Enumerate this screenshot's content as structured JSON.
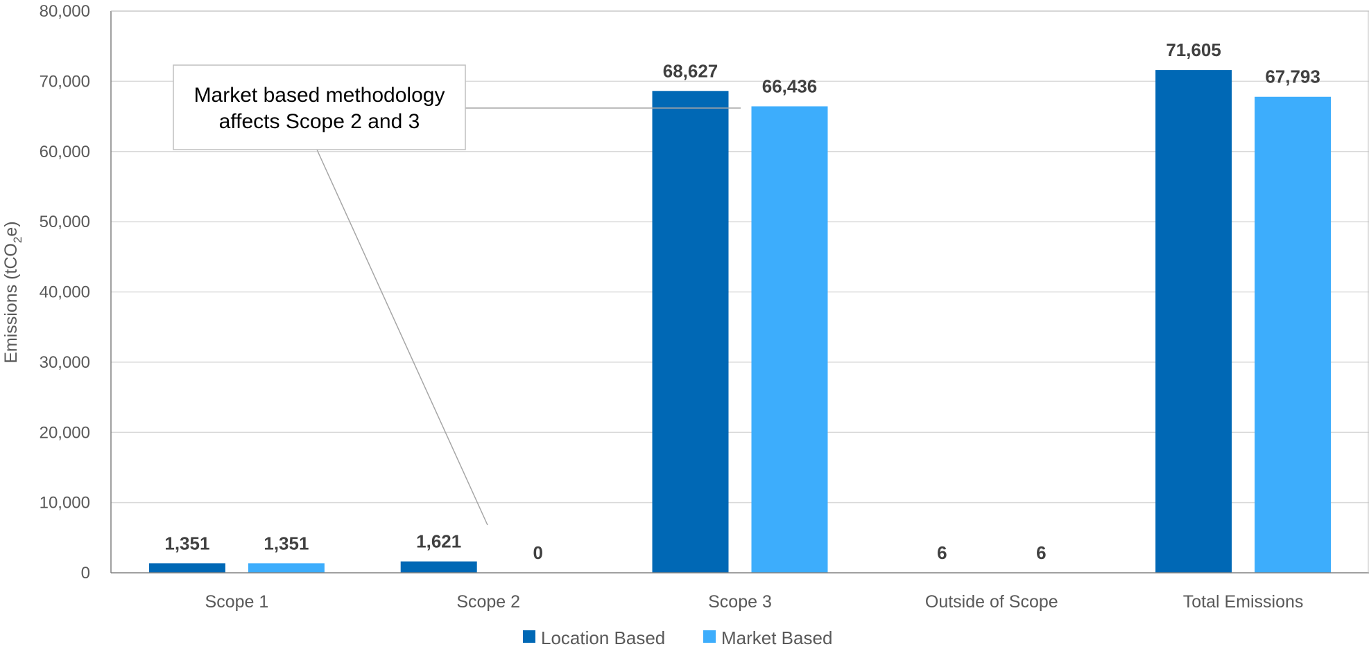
{
  "chart_data": {
    "type": "bar",
    "categories": [
      "Scope 1",
      "Scope 2",
      "Scope 3",
      "Outside of Scope",
      "Total Emissions"
    ],
    "series": [
      {
        "name": "Location Based",
        "color": "#0068B5",
        "values": [
          1351,
          1621,
          68627,
          6,
          71605
        ],
        "labels": [
          "1,351",
          "1,621",
          "68,627",
          "6",
          "71,605"
        ]
      },
      {
        "name": "Market Based",
        "color": "#3DADFC",
        "values": [
          1351,
          0,
          66436,
          6,
          67793
        ],
        "labels": [
          "1,351",
          "0",
          "66,436",
          "6",
          "67,793"
        ]
      }
    ],
    "ylabel_main": "Emissions (tCO",
    "ylabel_sub": "2",
    "ylabel_tail": "e)",
    "ylim": [
      0,
      80000
    ],
    "yticks": [
      0,
      10000,
      20000,
      30000,
      40000,
      50000,
      60000,
      70000,
      80000
    ],
    "ytick_labels": [
      "0",
      "10,000",
      "20,000",
      "30,000",
      "40,000",
      "50,000",
      "60,000",
      "70,000",
      "80,000"
    ],
    "grid": true,
    "legend_position": "bottom-center",
    "annotation": {
      "lines": [
        "Market based methodology",
        "affects Scope 2 and 3"
      ]
    }
  }
}
